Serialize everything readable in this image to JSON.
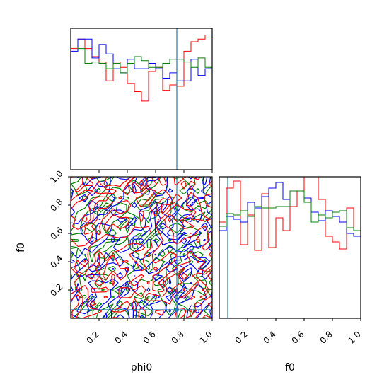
{
  "chart_data": {
    "type": "corner",
    "colors": {
      "series_1": "#ff0000",
      "series_2": "#0000ff",
      "series_3": "#008000",
      "truth": "#1f77b4"
    },
    "parameters": [
      "phi0",
      "f0"
    ],
    "axis_labels": {
      "x_left": "phi0",
      "x_right": "f0",
      "y_left": "f0"
    },
    "range": [
      0,
      1
    ],
    "ticks": [
      0.2,
      0.4,
      0.6,
      0.8,
      1.0
    ],
    "tick_labels": [
      "0.2",
      "0.4",
      "0.6",
      "0.8",
      "1.0"
    ],
    "truth": {
      "phi0": 0.75,
      "f0": 0.06
    },
    "hist_phi0": {
      "bins": [
        0,
        0.05,
        0.1,
        0.15,
        0.2,
        0.25,
        0.3,
        0.35,
        0.4,
        0.45,
        0.5,
        0.55,
        0.6,
        0.65,
        0.7,
        0.75,
        0.8,
        0.85,
        0.9,
        0.95,
        1.0
      ],
      "series": [
        {
          "color": "red",
          "values": [
            0.9,
            0.97,
            0.9,
            0.84,
            0.8,
            0.66,
            0.8,
            0.76,
            0.64,
            0.58,
            0.51,
            0.73,
            0.76,
            0.59,
            0.63,
            0.62,
            0.88,
            0.95,
            0.97,
            1.0
          ]
        },
        {
          "color": "blue",
          "values": [
            0.88,
            0.97,
            0.97,
            0.83,
            0.93,
            0.86,
            0.75,
            0.72,
            0.82,
            0.75,
            0.75,
            0.79,
            0.75,
            0.68,
            0.72,
            0.66,
            0.66,
            0.82,
            0.7,
            0.75
          ]
        },
        {
          "color": "green",
          "values": [
            0.91,
            0.9,
            0.79,
            0.8,
            0.79,
            0.75,
            0.79,
            0.72,
            0.79,
            0.84,
            0.81,
            0.76,
            0.76,
            0.79,
            0.82,
            0.82,
            0.8,
            0.76,
            0.83,
            0.76
          ]
        }
      ]
    },
    "hist_f0": {
      "bins": [
        0,
        0.05,
        0.1,
        0.15,
        0.2,
        0.25,
        0.3,
        0.35,
        0.4,
        0.45,
        0.5,
        0.55,
        0.6,
        0.65,
        0.7,
        0.75,
        0.8,
        0.85,
        0.9,
        0.95,
        1.0
      ],
      "series": [
        {
          "color": "red",
          "values": [
            0.68,
            0.92,
            0.97,
            0.52,
            0.73,
            0.48,
            0.88,
            0.5,
            0.71,
            0.62,
            0.79,
            0.9,
            1.05,
            1.0,
            0.84,
            0.58,
            0.54,
            0.49,
            0.78,
            0.62
          ]
        },
        {
          "color": "blue",
          "values": [
            0.62,
            0.72,
            0.7,
            0.68,
            0.82,
            0.78,
            0.86,
            0.92,
            0.96,
            0.84,
            0.9,
            0.9,
            0.85,
            0.75,
            0.69,
            0.76,
            0.72,
            0.68,
            0.6,
            0.58
          ]
        },
        {
          "color": "green",
          "values": [
            0.65,
            0.74,
            0.73,
            0.76,
            0.72,
            0.79,
            0.78,
            0.78,
            0.79,
            0.79,
            0.9,
            0.9,
            0.82,
            0.68,
            0.73,
            0.71,
            0.75,
            0.76,
            0.64,
            0.62
          ]
        }
      ]
    },
    "contour_2d": {
      "x": "phi0",
      "y": "f0",
      "contour_series": [
        "red",
        "blue",
        "green"
      ],
      "note_levels": "three credible-region contour sets, one per series"
    }
  }
}
